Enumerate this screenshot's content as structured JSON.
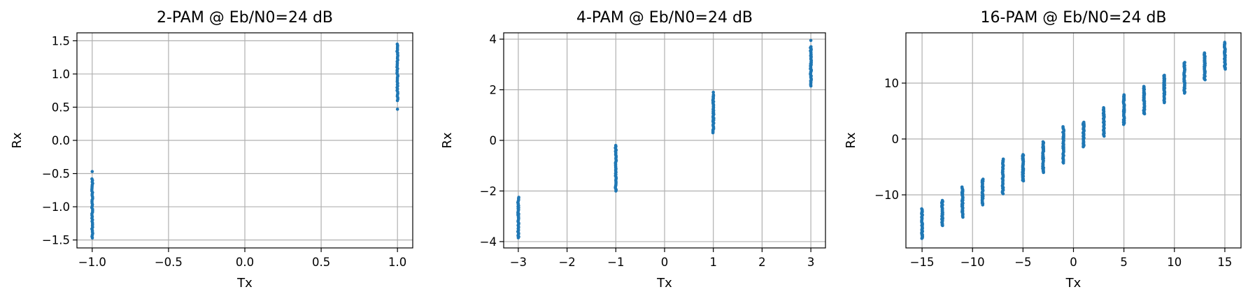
{
  "chart_data": [
    {
      "type": "scatter",
      "title": "2-PAM @ Eb/N0=24 dB",
      "xlabel": "Tx",
      "ylabel": "Rx",
      "xlim": [
        -1.1,
        1.1
      ],
      "ylim": [
        -1.62,
        1.62
      ],
      "xticks": [
        -1.0,
        -0.5,
        0.0,
        0.5,
        1.0
      ],
      "xtick_labels": [
        "−1.0",
        "−0.5",
        "0.0",
        "0.5",
        "1.0"
      ],
      "yticks": [
        -1.5,
        -1.0,
        -0.5,
        0.0,
        0.5,
        1.0,
        1.5
      ],
      "ytick_labels": [
        "−1.5",
        "−1.0",
        "−0.5",
        "0.0",
        "0.5",
        "1.0",
        "1.5"
      ],
      "grid": true,
      "color": "#1f77b4",
      "clusters": [
        {
          "x": -1,
          "y_min": -1.47,
          "y_max": -0.58,
          "outliers": [
            -0.47
          ]
        },
        {
          "x": 1,
          "y_min": 0.6,
          "y_max": 1.45,
          "outliers": [
            0.47
          ]
        }
      ]
    },
    {
      "type": "scatter",
      "title": "4-PAM @ Eb/N0=24 dB",
      "xlabel": "Tx",
      "ylabel": "Rx",
      "xlim": [
        -3.3,
        3.3
      ],
      "ylim": [
        -4.25,
        4.25
      ],
      "xticks": [
        -3,
        -2,
        -1,
        0,
        1,
        2,
        3
      ],
      "xtick_labels": [
        "−3",
        "−2",
        "−1",
        "0",
        "1",
        "2",
        "3"
      ],
      "yticks": [
        -4,
        -2,
        0,
        2,
        4
      ],
      "ytick_labels": [
        "−4",
        "−2",
        "0",
        "2",
        "4"
      ],
      "grid": true,
      "color": "#1f77b4",
      "clusters": [
        {
          "x": -3,
          "y_min": -3.85,
          "y_max": -2.25,
          "outliers": []
        },
        {
          "x": -1,
          "y_min": -2.0,
          "y_max": -0.2,
          "outliers": []
        },
        {
          "x": 1,
          "y_min": 0.3,
          "y_max": 1.8,
          "outliers": [
            1.9
          ]
        },
        {
          "x": 3,
          "y_min": 2.15,
          "y_max": 3.7,
          "outliers": [
            3.95
          ]
        }
      ]
    },
    {
      "type": "scatter",
      "title": "16-PAM @ Eb/N0=24 dB",
      "xlabel": "Tx",
      "ylabel": "Rx",
      "xlim": [
        -16.6,
        16.6
      ],
      "ylim": [
        -19.5,
        19.0
      ],
      "xticks": [
        -15,
        -10,
        -5,
        0,
        5,
        10,
        15
      ],
      "xtick_labels": [
        "−15",
        "−10",
        "−5",
        "0",
        "5",
        "10",
        "15"
      ],
      "yticks": [
        -10,
        0,
        10
      ],
      "ytick_labels": [
        "−10",
        "0",
        "10"
      ],
      "grid": true,
      "color": "#1f77b4",
      "clusters": [
        {
          "x": -15,
          "y_min": -17.8,
          "y_max": -12.5,
          "outliers": []
        },
        {
          "x": -13,
          "y_min": -15.5,
          "y_max": -11.0,
          "outliers": []
        },
        {
          "x": -11,
          "y_min": -14.0,
          "y_max": -8.6,
          "outliers": []
        },
        {
          "x": -9,
          "y_min": -11.8,
          "y_max": -7.2,
          "outliers": []
        },
        {
          "x": -7,
          "y_min": -9.8,
          "y_max": -3.6,
          "outliers": []
        },
        {
          "x": -5,
          "y_min": -7.5,
          "y_max": -2.8,
          "outliers": []
        },
        {
          "x": -3,
          "y_min": -6.0,
          "y_max": -0.5,
          "outliers": []
        },
        {
          "x": -1,
          "y_min": -4.3,
          "y_max": 2.2,
          "outliers": []
        },
        {
          "x": 1,
          "y_min": -1.4,
          "y_max": 3.0,
          "outliers": []
        },
        {
          "x": 3,
          "y_min": 0.5,
          "y_max": 5.6,
          "outliers": []
        },
        {
          "x": 5,
          "y_min": 2.6,
          "y_max": 7.9,
          "outliers": []
        },
        {
          "x": 7,
          "y_min": 4.5,
          "y_max": 9.4,
          "outliers": []
        },
        {
          "x": 9,
          "y_min": 6.5,
          "y_max": 11.4,
          "outliers": []
        },
        {
          "x": 11,
          "y_min": 8.2,
          "y_max": 13.7,
          "outliers": []
        },
        {
          "x": 13,
          "y_min": 10.6,
          "y_max": 15.4,
          "outliers": []
        },
        {
          "x": 15,
          "y_min": 12.5,
          "y_max": 17.3,
          "outliers": []
        }
      ]
    }
  ]
}
